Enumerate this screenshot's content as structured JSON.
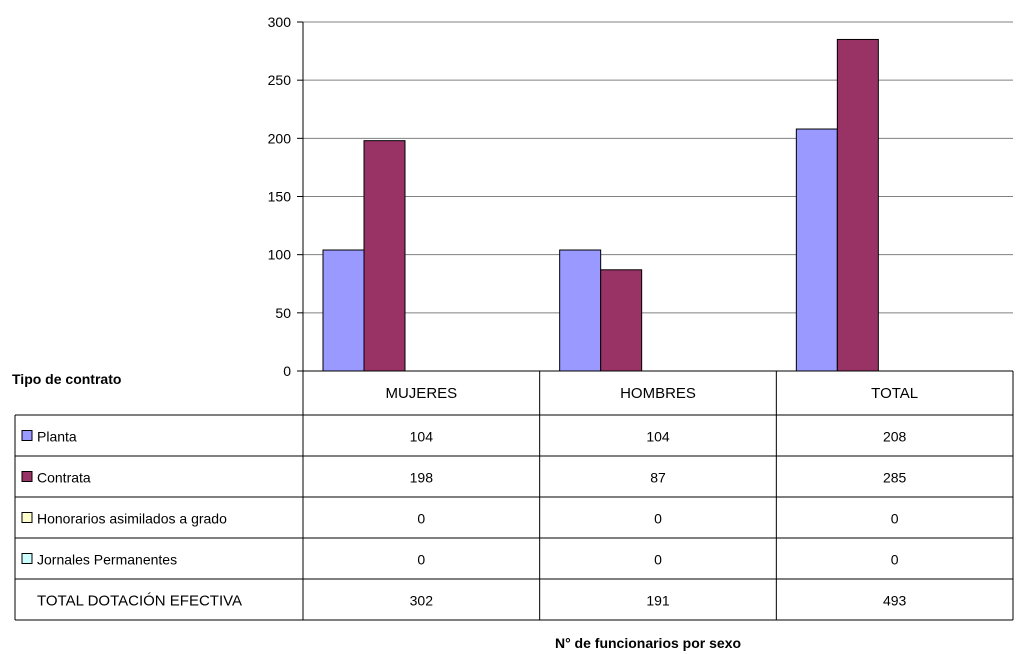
{
  "chart_data": {
    "type": "bar",
    "categories": [
      "MUJERES",
      "HOMBRES",
      "TOTAL"
    ],
    "series": [
      {
        "name": "Planta",
        "values": [
          104,
          104,
          208
        ],
        "color": "#9999ff"
      },
      {
        "name": "Contrata",
        "values": [
          198,
          87,
          285
        ],
        "color": "#993366"
      },
      {
        "name": "Honorarios asimilados a grado",
        "values": [
          0,
          0,
          0
        ],
        "color": "#ffffcc"
      },
      {
        "name": "Jornales Permanentes",
        "values": [
          0,
          0,
          0
        ],
        "color": "#ccffff"
      }
    ],
    "total_row": {
      "label": "TOTAL DOTACIÓN EFECTIVA",
      "values": [
        302,
        191,
        493
      ]
    },
    "table_header_label": "Tipo de contrato",
    "xlabel": "N° de funcionarios por sexo",
    "ylim": [
      0,
      300
    ],
    "yticks": [
      0,
      50,
      100,
      150,
      200,
      250,
      300
    ],
    "grid": true,
    "legend": "data-table"
  }
}
